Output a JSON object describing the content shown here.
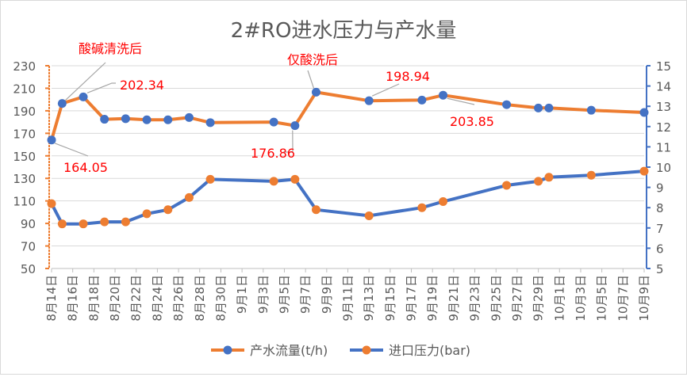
{
  "chart_data": {
    "type": "line",
    "title": "2#RO进水压力与产水量",
    "categories": [
      "8月14日",
      "8月16日",
      "8月18日",
      "8月20日",
      "8月22日",
      "8月24日",
      "8月26日",
      "8月28日",
      "8月30日",
      "9月1日",
      "9月3日",
      "9月5日",
      "9月7日",
      "9月9日",
      "9月11日",
      "9月13日",
      "9月15日",
      "9月17日",
      "9月19日",
      "9月21日",
      "9月23日",
      "9月25日",
      "9月27日",
      "9月29日",
      "10月1日",
      "10月3日",
      "10月5日",
      "10月7日",
      "10月9日"
    ],
    "y_left": {
      "min": 50,
      "max": 230,
      "step": 20,
      "ticks": [
        "50",
        "70",
        "90",
        "110",
        "130",
        "150",
        "170",
        "190",
        "210",
        "230"
      ]
    },
    "y_right": {
      "min": 5,
      "max": 15,
      "step": 1,
      "ticks": [
        "5",
        "6",
        "7",
        "8",
        "9",
        "10",
        "11",
        "12",
        "13",
        "14",
        "15"
      ]
    },
    "grid": true,
    "legend_position": "bottom",
    "series": [
      {
        "name": "产水流量(t/h)",
        "axis": "left",
        "line_color": "#ED7D31",
        "marker_color": "#4472C4",
        "points": [
          {
            "x": "8月14日",
            "y": 164.05
          },
          {
            "x": "8月15日",
            "y": 196.5
          },
          {
            "x": "8月17日",
            "y": 202.34
          },
          {
            "x": "8月19日",
            "y": 182.5
          },
          {
            "x": "8月21日",
            "y": 183
          },
          {
            "x": "8月23日",
            "y": 182
          },
          {
            "x": "8月25日",
            "y": 182
          },
          {
            "x": "8月27日",
            "y": 184
          },
          {
            "x": "8月29日",
            "y": 179.5
          },
          {
            "x": "9月4日",
            "y": 180
          },
          {
            "x": "9月6日",
            "y": 176.86
          },
          {
            "x": "9月8日",
            "y": 206.5
          },
          {
            "x": "9月13日",
            "y": 198.94
          },
          {
            "x": "9月18日",
            "y": 199.5
          },
          {
            "x": "9月20日",
            "y": 203.85
          },
          {
            "x": "9月26日",
            "y": 195.5
          },
          {
            "x": "9月29日",
            "y": 192.5
          },
          {
            "x": "9月30日",
            "y": 192.5
          },
          {
            "x": "10月4日",
            "y": 190.5
          },
          {
            "x": "10月9日",
            "y": 188.5
          }
        ]
      },
      {
        "name": "进口压力(bar)",
        "axis": "right",
        "line_color": "#4472C4",
        "marker_color": "#ED7D31",
        "points": [
          {
            "x": "8月14日",
            "y": 8.2
          },
          {
            "x": "8月15日",
            "y": 7.2
          },
          {
            "x": "8月17日",
            "y": 7.2
          },
          {
            "x": "8月19日",
            "y": 7.3
          },
          {
            "x": "8月21日",
            "y": 7.3
          },
          {
            "x": "8月23日",
            "y": 7.7
          },
          {
            "x": "8月25日",
            "y": 7.9
          },
          {
            "x": "8月27日",
            "y": 8.5
          },
          {
            "x": "8月29日",
            "y": 9.4
          },
          {
            "x": "9月4日",
            "y": 9.3
          },
          {
            "x": "9月6日",
            "y": 9.4
          },
          {
            "x": "9月8日",
            "y": 7.9
          },
          {
            "x": "9月13日",
            "y": 7.6
          },
          {
            "x": "9月18日",
            "y": 8.0
          },
          {
            "x": "9月20日",
            "y": 8.3
          },
          {
            "x": "9月26日",
            "y": 9.1
          },
          {
            "x": "9月29日",
            "y": 9.3
          },
          {
            "x": "9月30日",
            "y": 9.5
          },
          {
            "x": "10月4日",
            "y": 9.6
          },
          {
            "x": "10月9日",
            "y": 9.8
          }
        ]
      }
    ],
    "annotations": [
      {
        "text": "酸碱清洗后",
        "color": "#FF0000"
      },
      {
        "text": "仅酸洗后",
        "color": "#FF0000"
      },
      {
        "text": "202.34",
        "color": "#FF0000"
      },
      {
        "text": "164.05",
        "color": "#FF0000"
      },
      {
        "text": "176.86",
        "color": "#FF0000"
      },
      {
        "text": "198.94",
        "color": "#FF0000"
      },
      {
        "text": "203.85",
        "color": "#FF0000"
      }
    ]
  }
}
